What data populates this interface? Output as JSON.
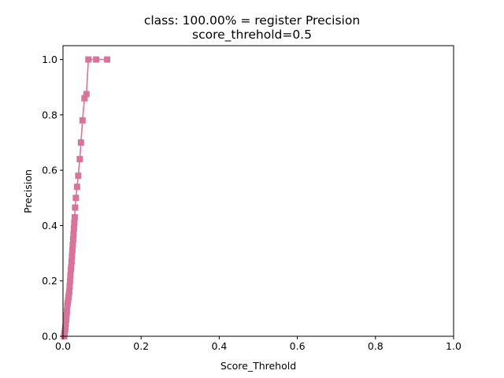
{
  "chart_data": {
    "type": "line",
    "title_line1": "class: 100.00% = register Precision",
    "title_line2": "score_threhold=0.5",
    "xlabel": "Score_Threhold",
    "ylabel": "Precision",
    "xlim": [
      0,
      1.0
    ],
    "ylim": [
      0,
      1.05
    ],
    "xticks": [
      "0.0",
      "0.2",
      "0.4",
      "0.6",
      "0.8",
      "1.0"
    ],
    "yticks": [
      "0.0",
      "0.2",
      "0.4",
      "0.6",
      "0.8",
      "1.0"
    ],
    "grid": false,
    "marker": "square",
    "color": "#d8749a",
    "series": [
      {
        "x": [
          0.003,
          0.004,
          0.005,
          0.006,
          0.007,
          0.008,
          0.009,
          0.01,
          0.011,
          0.012,
          0.013,
          0.014,
          0.015,
          0.016,
          0.017,
          0.018,
          0.019,
          0.02,
          0.021,
          0.022,
          0.023,
          0.024,
          0.025,
          0.026,
          0.027,
          0.028,
          0.029,
          0.03,
          0.031,
          0.033,
          0.036,
          0.039,
          0.043,
          0.046,
          0.05,
          0.055,
          0.06,
          0.065,
          0.085,
          0.113
        ],
        "y": [
          0.0,
          0.01,
          0.02,
          0.03,
          0.045,
          0.06,
          0.075,
          0.09,
          0.11,
          0.12,
          0.13,
          0.14,
          0.15,
          0.16,
          0.18,
          0.2,
          0.22,
          0.24,
          0.25,
          0.27,
          0.29,
          0.31,
          0.33,
          0.35,
          0.37,
          0.39,
          0.41,
          0.43,
          0.465,
          0.5,
          0.54,
          0.58,
          0.64,
          0.7,
          0.78,
          0.86,
          0.875,
          1.0,
          1.0,
          1.0
        ]
      }
    ]
  }
}
